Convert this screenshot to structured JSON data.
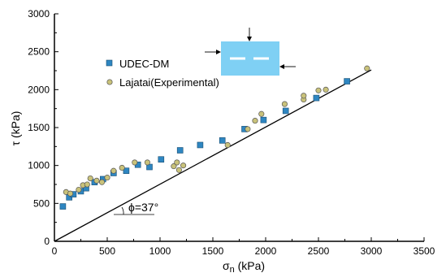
{
  "chart_data": {
    "type": "scatter",
    "xlabel": "σn (kPa)",
    "ylabel": "τ (kPa)",
    "xlim": [
      0,
      3500
    ],
    "ylim": [
      0,
      3000
    ],
    "xticks": [
      0,
      500,
      1000,
      1500,
      2000,
      2500,
      3000,
      3500
    ],
    "yticks": [
      0,
      500,
      1000,
      1500,
      2000,
      2500,
      3000
    ],
    "grid": false,
    "legend_position": "top-left",
    "series": [
      {
        "name": "UDEC-DM",
        "marker": "square",
        "color": "#2e86c1",
        "stroke": "#1b4f72",
        "points": [
          [
            80,
            460
          ],
          [
            140,
            580
          ],
          [
            180,
            620
          ],
          [
            250,
            660
          ],
          [
            300,
            700
          ],
          [
            380,
            780
          ],
          [
            460,
            820
          ],
          [
            560,
            900
          ],
          [
            680,
            930
          ],
          [
            790,
            1010
          ],
          [
            900,
            980
          ],
          [
            1010,
            1080
          ],
          [
            1190,
            1200
          ],
          [
            1380,
            1270
          ],
          [
            1590,
            1330
          ],
          [
            1800,
            1480
          ],
          [
            1980,
            1600
          ],
          [
            2190,
            1720
          ],
          [
            2480,
            1890
          ],
          [
            2770,
            2110
          ]
        ]
      },
      {
        "name": "Lajatai(Experimental)",
        "marker": "circle",
        "color": "#c9c27a",
        "stroke": "#555555",
        "points": [
          [
            110,
            650
          ],
          [
            150,
            630
          ],
          [
            230,
            680
          ],
          [
            270,
            740
          ],
          [
            310,
            750
          ],
          [
            340,
            830
          ],
          [
            400,
            800
          ],
          [
            450,
            780
          ],
          [
            500,
            840
          ],
          [
            560,
            930
          ],
          [
            640,
            970
          ],
          [
            760,
            1040
          ],
          [
            880,
            1040
          ],
          [
            1130,
            990
          ],
          [
            1160,
            1040
          ],
          [
            1180,
            940
          ],
          [
            1220,
            1000
          ],
          [
            1640,
            1270
          ],
          [
            1830,
            1480
          ],
          [
            1900,
            1590
          ],
          [
            1960,
            1680
          ],
          [
            2180,
            1810
          ],
          [
            2360,
            1870
          ],
          [
            2360,
            1920
          ],
          [
            2500,
            1990
          ],
          [
            2570,
            2000
          ],
          [
            2960,
            2280
          ]
        ]
      }
    ],
    "reference_line": {
      "from": [
        0,
        0
      ],
      "to": [
        3000,
        2260
      ],
      "angle_label": "ϕ=37°"
    },
    "inset": {
      "description_color": "#7fd0f4"
    }
  }
}
